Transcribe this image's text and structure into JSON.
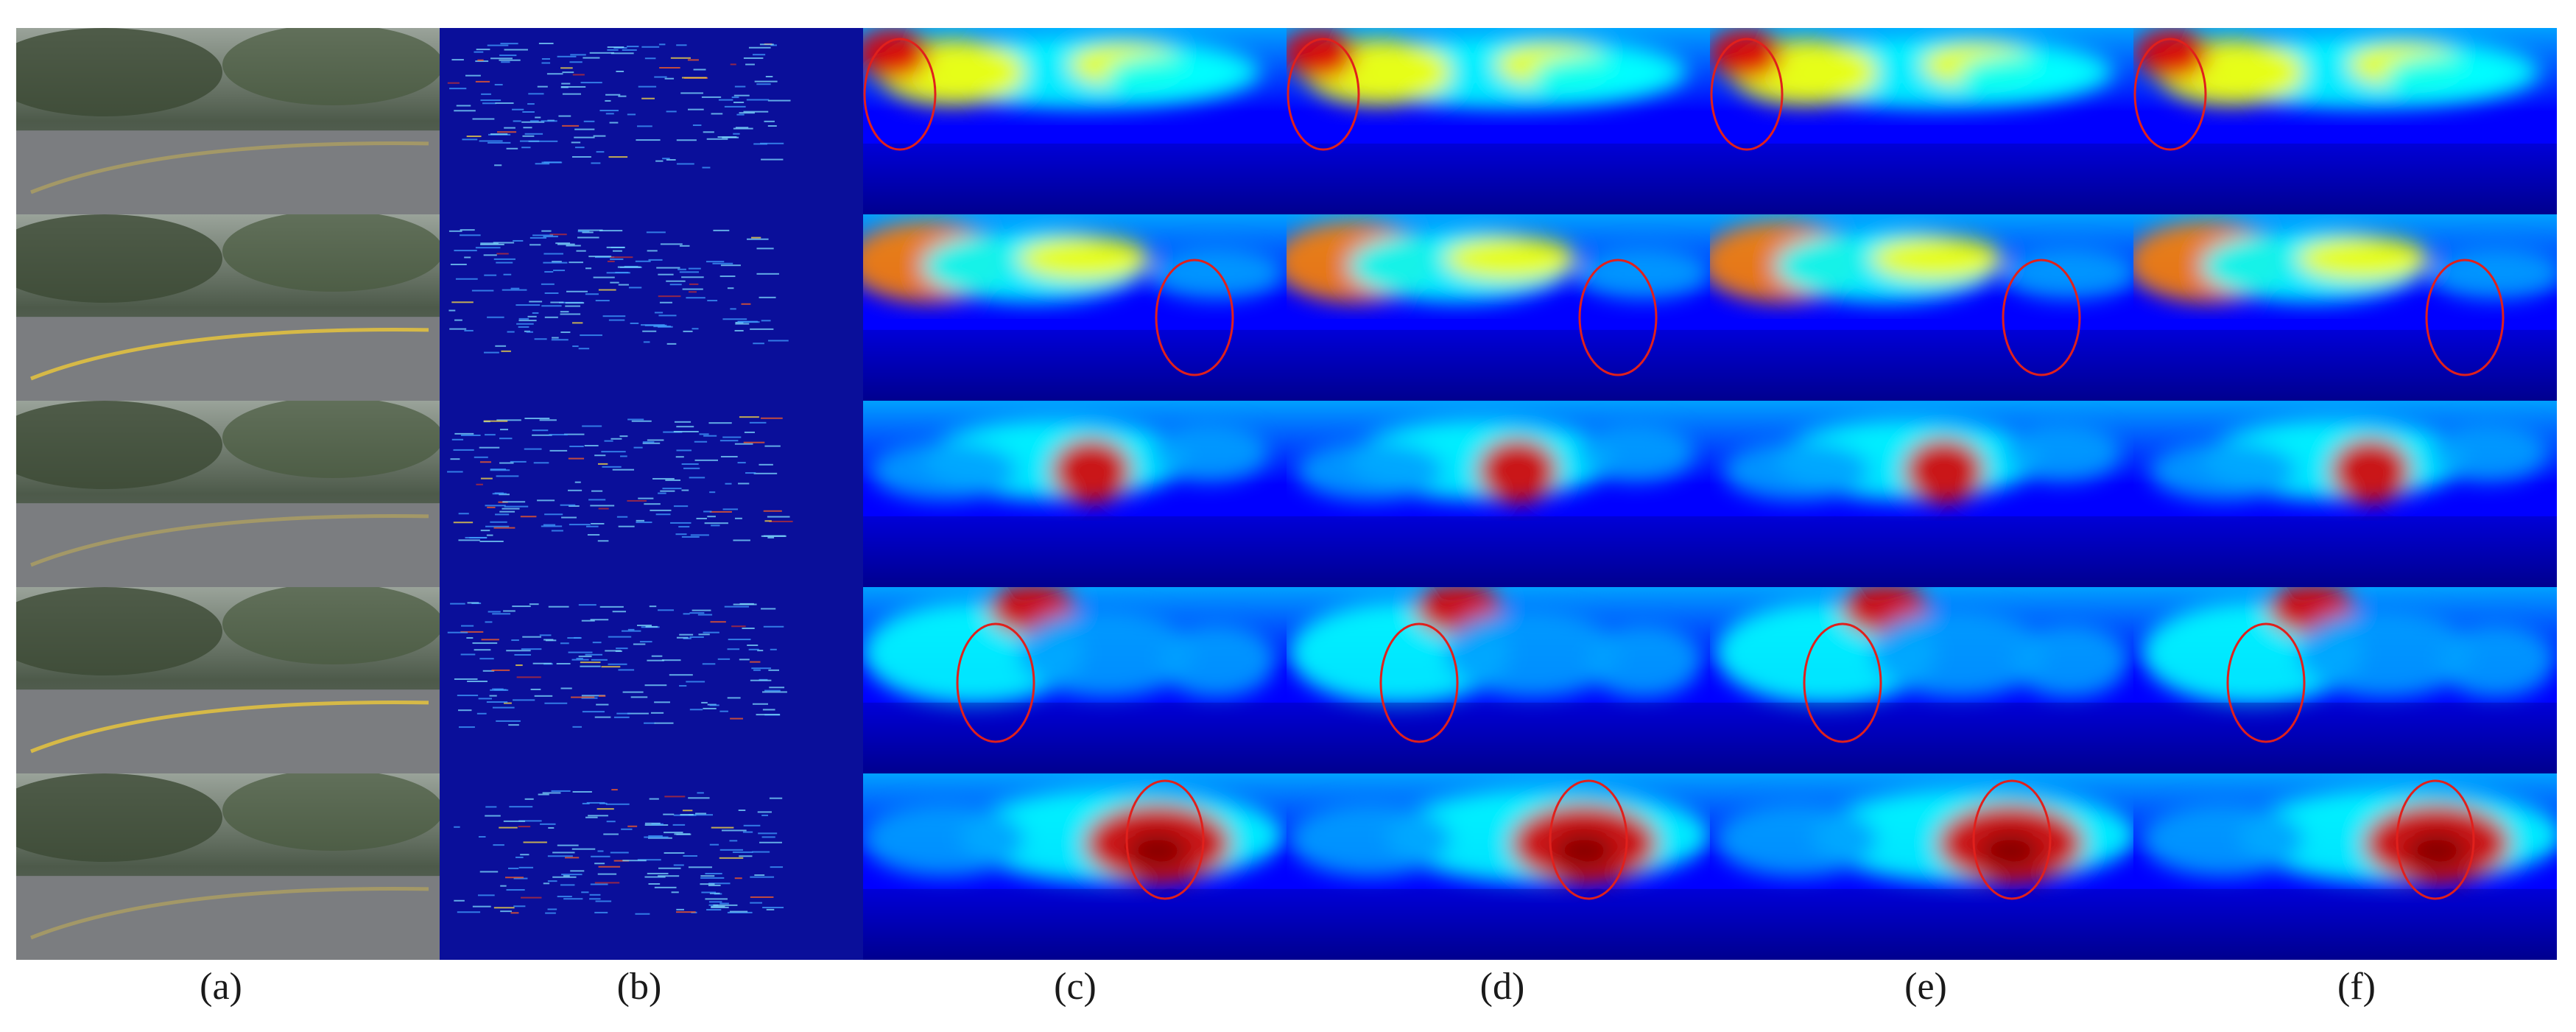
{
  "figure": {
    "column_labels": [
      "(a)",
      "(b)",
      "(c)",
      "(d)",
      "(e)",
      "(f)"
    ],
    "rows": 5,
    "column_kinds": [
      "rgb-photo",
      "sparse-depth",
      "depth-map",
      "depth-map",
      "depth-map",
      "depth-map"
    ],
    "highlight": {
      "shape": "ellipse",
      "color": "#e0201c"
    },
    "colormap": [
      "#00008f",
      "#0000ff",
      "#00a0ff",
      "#00ffff",
      "#ffff00",
      "#ff8000",
      "#e00000",
      "#800000"
    ]
  }
}
